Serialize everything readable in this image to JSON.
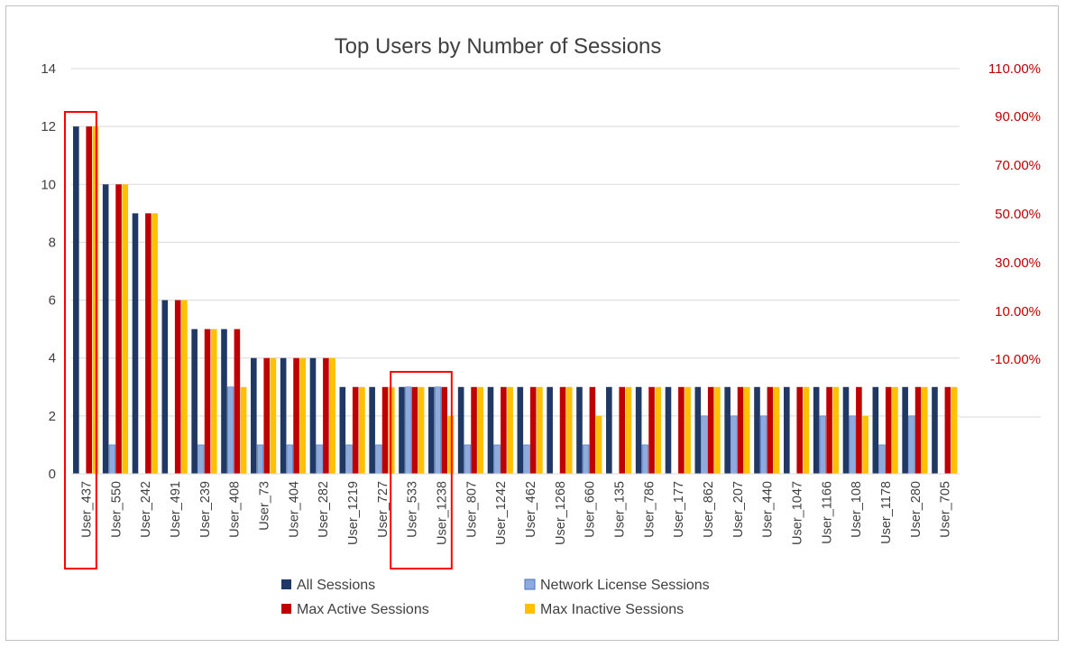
{
  "chart_data": {
    "type": "bar",
    "title": "Top Users by Number of Sessions",
    "categories": [
      "User_437",
      "User_550",
      "User_242",
      "User_491",
      "User_239",
      "User_408",
      "User_73",
      "User_404",
      "User_282",
      "User_1219",
      "User_727",
      "User_533",
      "User_1238",
      "User_807",
      "User_1242",
      "User_462",
      "User_1268",
      "User_660",
      "User_135",
      "User_786",
      "User_177",
      "User_862",
      "User_207",
      "User_440",
      "User_1047",
      "User_1166",
      "User_108",
      "User_1178",
      "User_280",
      "User_705"
    ],
    "series": [
      {
        "name": "All Sessions",
        "color": "#203864",
        "values": [
          12,
          10,
          9,
          6,
          5,
          5,
          4,
          4,
          4,
          3,
          3,
          3,
          3,
          3,
          3,
          3,
          3,
          3,
          3,
          3,
          3,
          3,
          3,
          3,
          3,
          3,
          3,
          3,
          3,
          3
        ]
      },
      {
        "name": "Network License Sessions",
        "color": "#8faadc",
        "values": [
          0,
          1,
          0,
          0,
          1,
          3,
          1,
          1,
          1,
          1,
          1,
          3,
          3,
          1,
          1,
          1,
          0,
          1,
          0,
          1,
          0,
          2,
          2,
          2,
          0,
          2,
          2,
          1,
          2,
          0
        ]
      },
      {
        "name": "Max Active Sessions",
        "color": "#c00000",
        "values": [
          12,
          10,
          9,
          6,
          5,
          5,
          4,
          4,
          4,
          3,
          3,
          3,
          3,
          3,
          3,
          3,
          3,
          3,
          3,
          3,
          3,
          3,
          3,
          3,
          3,
          3,
          3,
          3,
          3,
          3
        ]
      },
      {
        "name": "Max Inactive Sessions",
        "color": "#ffc000",
        "values": [
          12,
          10,
          9,
          6,
          5,
          3,
          4,
          4,
          4,
          3,
          3,
          3,
          2,
          3,
          3,
          3,
          3,
          2,
          3,
          3,
          3,
          3,
          3,
          3,
          3,
          3,
          2,
          3,
          3,
          3
        ]
      }
    ],
    "ylim": [
      0,
      14
    ],
    "y_ticks": [
      "0",
      "2",
      "4",
      "6",
      "8",
      "10",
      "12",
      "14"
    ],
    "y2_ticks": [
      "-10.00%",
      "10.00%",
      "30.00%",
      "50.00%",
      "70.00%",
      "90.00%",
      "110.00%"
    ],
    "grid": true,
    "legend_position": "bottom",
    "highlighted_categories": [
      [
        "User_437"
      ],
      [
        "User_533",
        "User_1238"
      ]
    ],
    "highlight_color": "#ff0000"
  }
}
